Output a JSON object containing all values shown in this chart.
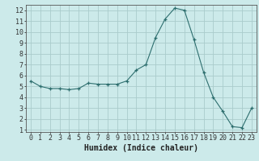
{
  "x": [
    0,
    1,
    2,
    3,
    4,
    5,
    6,
    7,
    8,
    9,
    10,
    11,
    12,
    13,
    14,
    15,
    16,
    17,
    18,
    19,
    20,
    21,
    22,
    23
  ],
  "y": [
    5.5,
    5.0,
    4.8,
    4.8,
    4.7,
    4.8,
    5.3,
    5.2,
    5.2,
    5.2,
    5.5,
    6.5,
    7.0,
    9.5,
    11.2,
    12.2,
    12.0,
    9.3,
    6.3,
    4.0,
    2.7,
    1.3,
    1.2,
    3.0
  ],
  "line_color": "#2d6e6e",
  "marker": "+",
  "marker_size": 3,
  "bg_color": "#cceaea",
  "grid_color": "#aacccc",
  "xlabel": "Humidex (Indice chaleur)",
  "xlim": [
    -0.5,
    23.5
  ],
  "ylim": [
    0.8,
    12.5
  ],
  "xtick_labels": [
    "0",
    "1",
    "2",
    "3",
    "4",
    "5",
    "6",
    "7",
    "8",
    "9",
    "10",
    "11",
    "12",
    "13",
    "14",
    "15",
    "16",
    "17",
    "18",
    "19",
    "20",
    "21",
    "22",
    "23"
  ],
  "ytick_labels": [
    "1",
    "2",
    "3",
    "4",
    "5",
    "6",
    "7",
    "8",
    "9",
    "10",
    "11",
    "12"
  ],
  "yticks": [
    1,
    2,
    3,
    4,
    5,
    6,
    7,
    8,
    9,
    10,
    11,
    12
  ],
  "tick_fontsize": 6,
  "xlabel_fontsize": 7
}
